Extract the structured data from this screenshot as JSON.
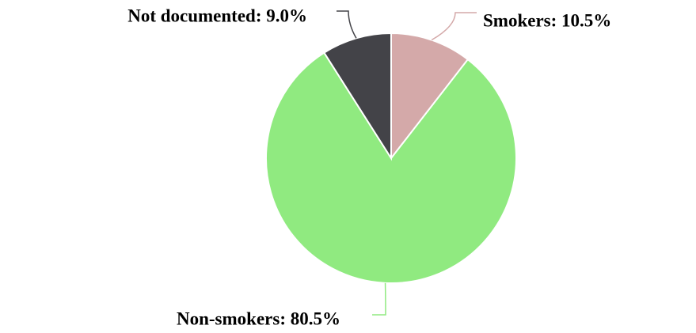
{
  "chart_data": {
    "type": "pie",
    "values": [
      10.5,
      80.5,
      9.0
    ],
    "value_labels": [
      "Smokers: 10.5%",
      "Non-smokers: 80.5%",
      "Not documented: 9.0%"
    ],
    "colors": [
      "#d4a9a9",
      "#90ea80",
      "#434348"
    ]
  }
}
